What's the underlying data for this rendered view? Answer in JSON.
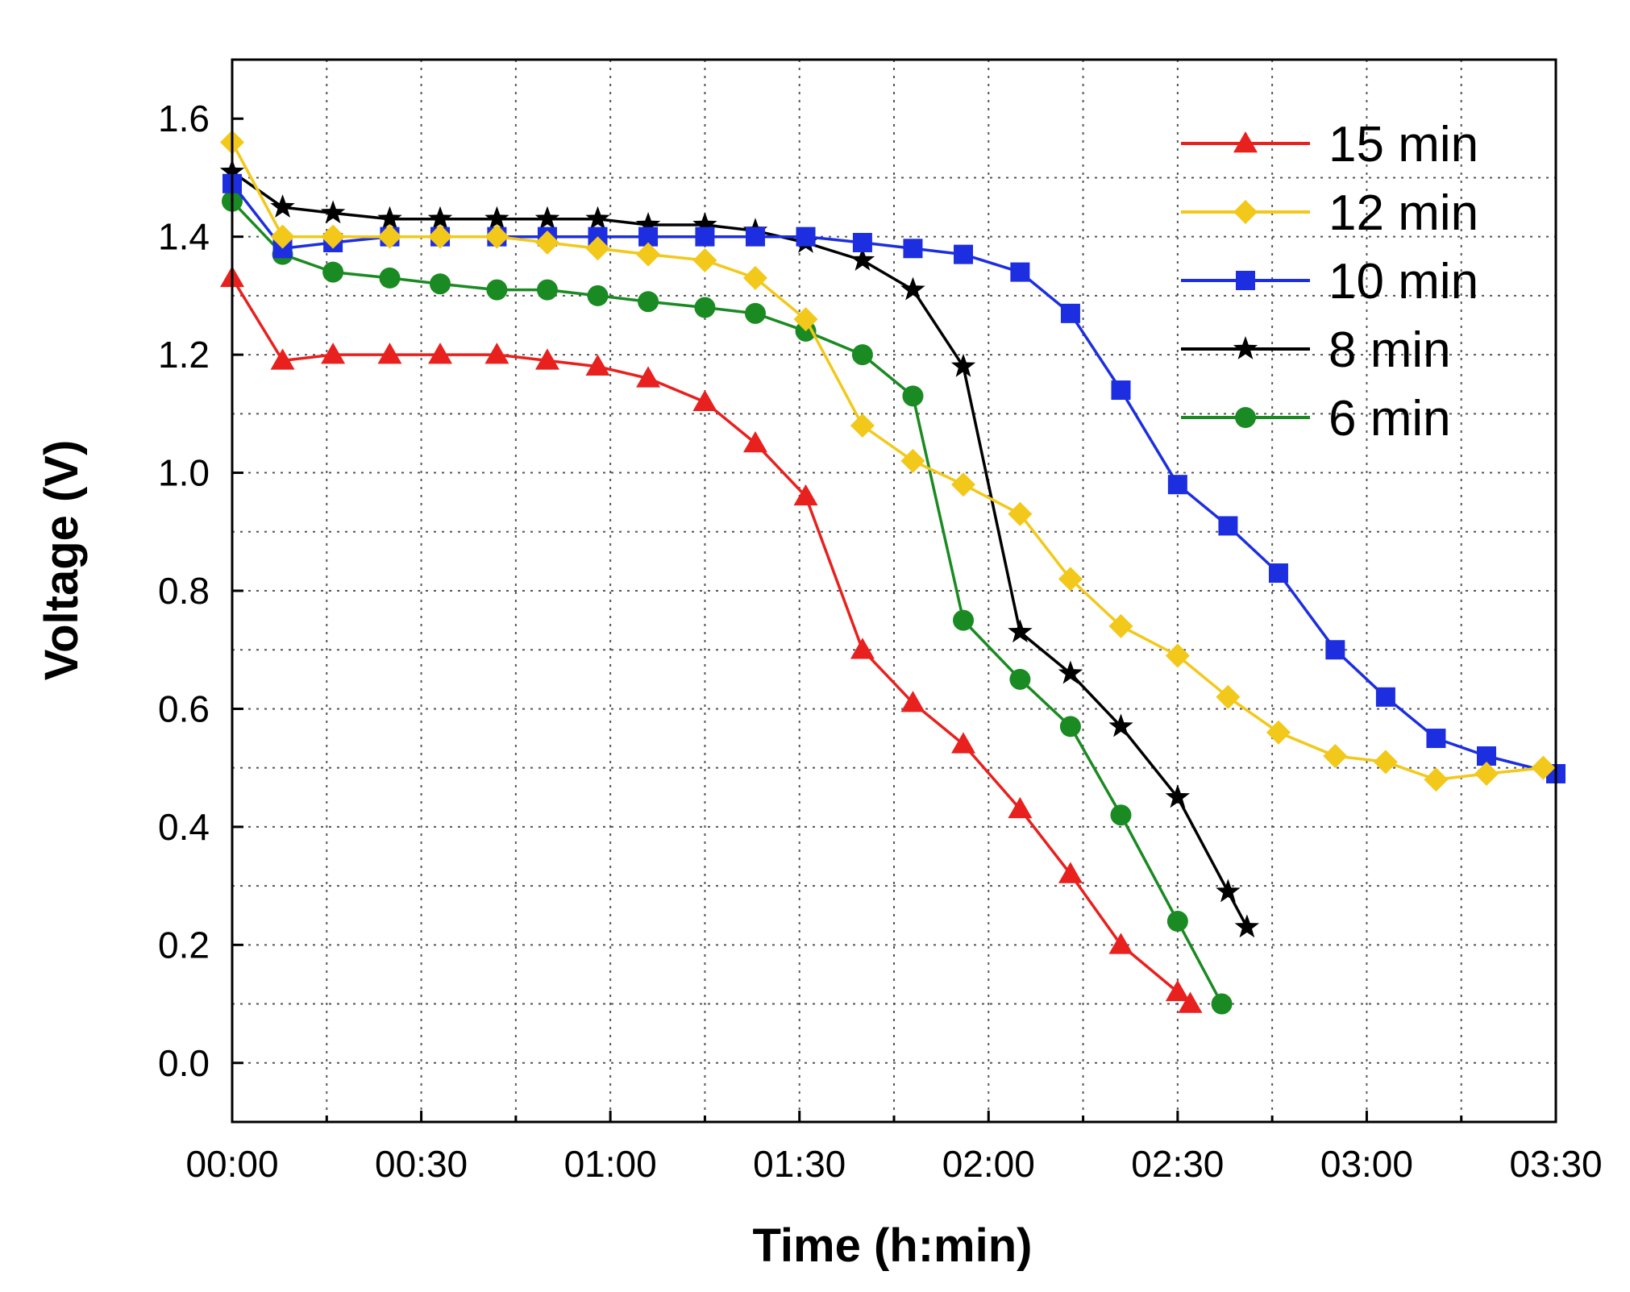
{
  "chart_data": {
    "type": "line",
    "title": "",
    "xlabel": "Time (h:min)",
    "ylabel": "Voltage (V)",
    "xlim": [
      0,
      210
    ],
    "ylim": [
      -0.1,
      1.7
    ],
    "grid": true,
    "x_ticks": [
      {
        "value": 0,
        "label": "00:00"
      },
      {
        "value": 30,
        "label": "00:30"
      },
      {
        "value": 60,
        "label": "01:00"
      },
      {
        "value": 90,
        "label": "01:30"
      },
      {
        "value": 120,
        "label": "02:00"
      },
      {
        "value": 150,
        "label": "02:30"
      },
      {
        "value": 180,
        "label": "03:00"
      },
      {
        "value": 210,
        "label": "03:30"
      }
    ],
    "y_ticks": [
      {
        "value": 0.0,
        "label": "0.0"
      },
      {
        "value": 0.2,
        "label": "0.2"
      },
      {
        "value": 0.4,
        "label": "0.4"
      },
      {
        "value": 0.6,
        "label": "0.6"
      },
      {
        "value": 0.8,
        "label": "0.8"
      },
      {
        "value": 1.0,
        "label": "1.0"
      },
      {
        "value": 1.2,
        "label": "1.2"
      },
      {
        "value": 1.4,
        "label": "1.4"
      },
      {
        "value": 1.6,
        "label": "1.6"
      }
    ],
    "legend_position": "top-right",
    "series": [
      {
        "name": "15 min",
        "color": "#e8201e",
        "marker": "triangle",
        "x": [
          0,
          8,
          16,
          25,
          33,
          42,
          50,
          58,
          66,
          75,
          83,
          91,
          100,
          108,
          116,
          125,
          133,
          141,
          150,
          152
        ],
        "y": [
          1.33,
          1.19,
          1.2,
          1.2,
          1.2,
          1.2,
          1.19,
          1.18,
          1.16,
          1.12,
          1.05,
          0.96,
          0.7,
          0.61,
          0.54,
          0.43,
          0.32,
          0.2,
          0.12,
          0.1
        ]
      },
      {
        "name": "12 min",
        "color": "#f2c81a",
        "marker": "diamond",
        "x": [
          0,
          8,
          16,
          25,
          33,
          42,
          50,
          58,
          66,
          75,
          83,
          91,
          100,
          108,
          116,
          125,
          133,
          141,
          150,
          158,
          166,
          175,
          183,
          191,
          199,
          208
        ],
        "y": [
          1.56,
          1.4,
          1.4,
          1.4,
          1.4,
          1.4,
          1.39,
          1.38,
          1.37,
          1.36,
          1.33,
          1.26,
          1.08,
          1.02,
          0.98,
          0.93,
          0.82,
          0.74,
          0.69,
          0.62,
          0.56,
          0.52,
          0.51,
          0.48,
          0.49,
          0.5
        ]
      },
      {
        "name": "10 min",
        "color": "#1c2ee0",
        "marker": "square",
        "x": [
          0,
          8,
          16,
          25,
          33,
          42,
          50,
          58,
          66,
          75,
          83,
          91,
          100,
          108,
          116,
          125,
          133,
          141,
          150,
          158,
          166,
          175,
          183,
          191,
          199,
          210
        ],
        "y": [
          1.49,
          1.38,
          1.39,
          1.4,
          1.4,
          1.4,
          1.4,
          1.4,
          1.4,
          1.4,
          1.4,
          1.4,
          1.39,
          1.38,
          1.37,
          1.34,
          1.27,
          1.14,
          0.98,
          0.91,
          0.83,
          0.7,
          0.62,
          0.55,
          0.52,
          0.49
        ]
      },
      {
        "name": "8 min",
        "color": "#000000",
        "marker": "star",
        "x": [
          0,
          8,
          16,
          25,
          33,
          42,
          50,
          58,
          66,
          75,
          83,
          91,
          100,
          108,
          116,
          125,
          133,
          141,
          150,
          158,
          161
        ],
        "y": [
          1.51,
          1.45,
          1.44,
          1.43,
          1.43,
          1.43,
          1.43,
          1.43,
          1.42,
          1.42,
          1.41,
          1.39,
          1.36,
          1.31,
          1.18,
          0.73,
          0.66,
          0.57,
          0.45,
          0.29,
          0.23
        ]
      },
      {
        "name": "6 min",
        "color": "#1a8a22",
        "marker": "circle",
        "x": [
          0,
          8,
          16,
          25,
          33,
          42,
          50,
          58,
          66,
          75,
          83,
          91,
          100,
          108,
          116,
          125,
          133,
          141,
          150,
          157
        ],
        "y": [
          1.46,
          1.37,
          1.34,
          1.33,
          1.32,
          1.31,
          1.31,
          1.3,
          1.29,
          1.28,
          1.27,
          1.24,
          1.2,
          1.13,
          0.75,
          0.65,
          0.57,
          0.42,
          0.24,
          0.1
        ]
      }
    ]
  }
}
